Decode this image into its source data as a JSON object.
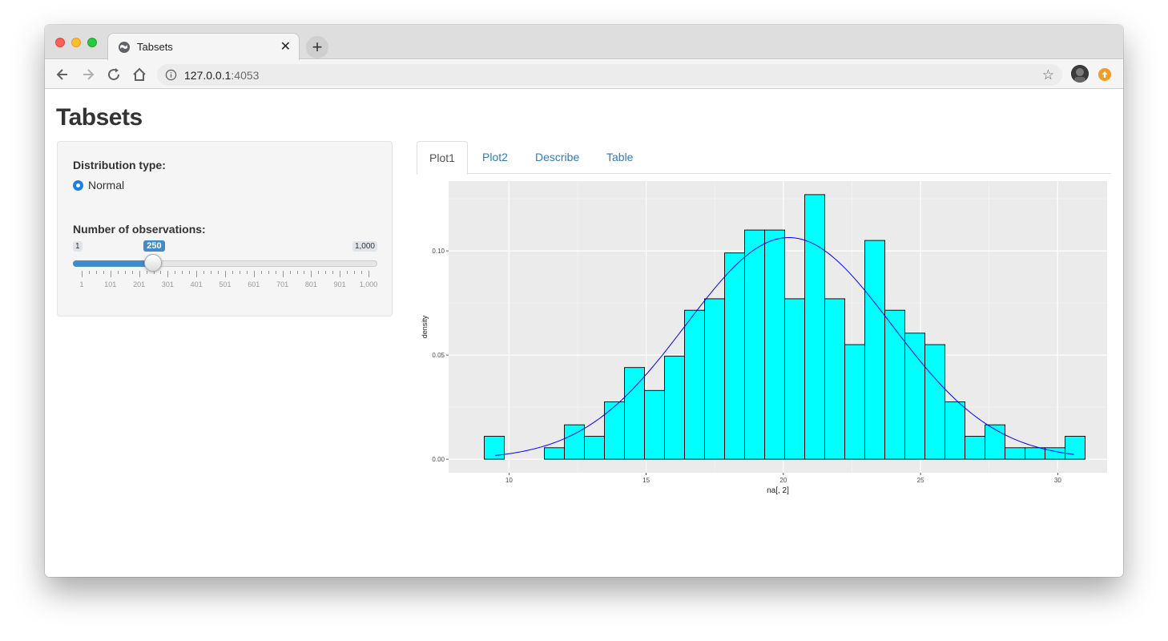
{
  "browser": {
    "tab_title": "Tabsets",
    "url_host": "127.0.0.1",
    "url_port": ":4053"
  },
  "page": {
    "title": "Tabsets"
  },
  "sidebar": {
    "distribution_label": "Distribution type:",
    "distribution_option": "Normal",
    "observations_label": "Number of observations:",
    "slider": {
      "min_label": "1",
      "max_label": "1,000",
      "value_label": "250",
      "min": 1,
      "max": 1000,
      "value": 250,
      "tick_labels": [
        "1",
        "101",
        "201",
        "301",
        "401",
        "501",
        "601",
        "701",
        "801",
        "901",
        "1,000"
      ]
    }
  },
  "tabs": [
    {
      "label": "Plot1",
      "active": true
    },
    {
      "label": "Plot2",
      "active": false
    },
    {
      "label": "Describe",
      "active": false
    },
    {
      "label": "Table",
      "active": false
    }
  ],
  "chart_data": {
    "type": "bar",
    "xlabel": "na[, 2]",
    "ylabel": "density",
    "xlim": [
      7.8,
      31.8
    ],
    "ylim": [
      -0.0065,
      0.1335
    ],
    "x_ticks": [
      10,
      15,
      20,
      25,
      30
    ],
    "x_tick_labels": [
      "10",
      "15",
      "20",
      "25",
      "30"
    ],
    "y_ticks": [
      0.0,
      0.05,
      0.1
    ],
    "y_tick_labels": [
      "0.00",
      "0.05",
      "0.10"
    ],
    "bin_edges_start": 9.1,
    "bin_width": 0.73,
    "values": [
      0.011,
      0.0,
      0.0,
      0.0055,
      0.0165,
      0.011,
      0.0275,
      0.044,
      0.033,
      0.0495,
      0.0715,
      0.077,
      0.099,
      0.11,
      0.11,
      0.077,
      0.127,
      0.077,
      0.055,
      0.105,
      0.0715,
      0.0605,
      0.055,
      0.0275,
      0.011,
      0.0165,
      0.0055,
      0.0055,
      0.0055,
      0.011
    ],
    "bar_fill": "#00ffff",
    "bar_stroke": "#000000",
    "curve": {
      "mean": 20.2,
      "sd": 3.75,
      "from": 9.5,
      "to": 30.6,
      "color": "#0000ff"
    },
    "panel_background": "#ebebeb",
    "grid": true
  }
}
